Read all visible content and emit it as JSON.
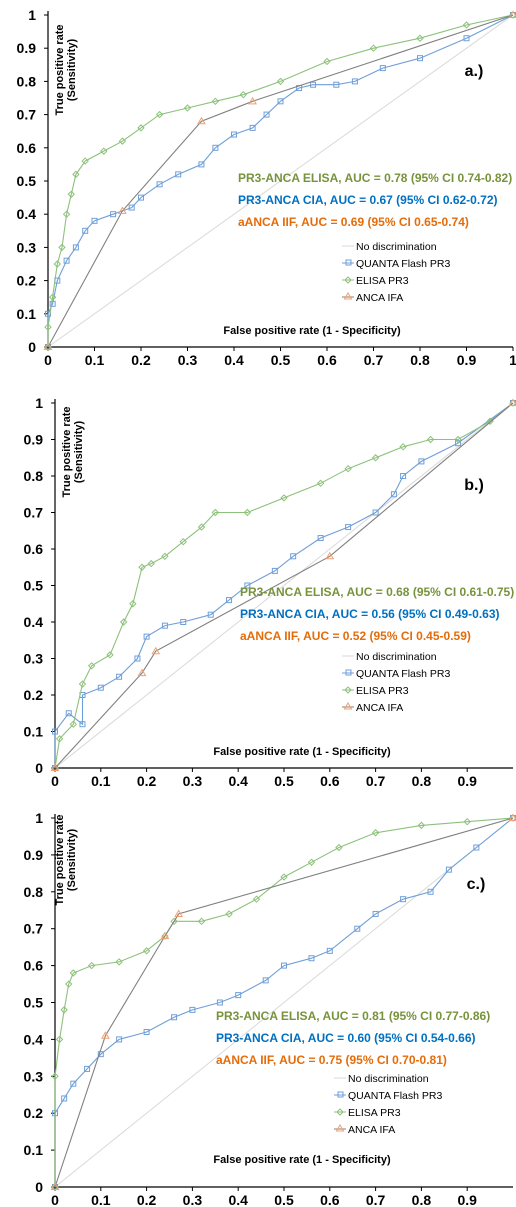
{
  "chart_data": [
    {
      "type": "line",
      "panel_label": "a.)",
      "ylabel_line1": "True positive rate",
      "ylabel_line2": "(Sensitivity)",
      "xlabel": "False positive rate (1 - Specificity)",
      "xlim": [
        0,
        1
      ],
      "ylim": [
        0,
        1
      ],
      "x_ticks": [
        "0",
        "0.1",
        "0.2",
        "0.3",
        "0.4",
        "0.5",
        "0.6",
        "0.7",
        "0.8",
        "0.9",
        "1"
      ],
      "y_ticks": [
        "0",
        "0.1",
        "0.2",
        "0.3",
        "0.4",
        "0.5",
        "0.6",
        "0.7",
        "0.8",
        "0.9",
        "1"
      ],
      "auc_labels": [
        {
          "text": "PR3-ANCA ELISA,  AUC = 0.78 (95% CI 0.74-0.82)",
          "color": "#77933c"
        },
        {
          "text": "PR3-ANCA CIA,  AUC = 0.67 (95% CI 0.62-0.72)",
          "color": "#0070c0"
        },
        {
          "text": "aANCA IIF,  AUC = 0.69 (95% CI 0.65-0.74)",
          "color": "#e46c0a"
        }
      ],
      "legend": [
        "No discrimination",
        "QUANTA Flash PR3",
        "ELISA PR3",
        "ANCA IFA"
      ],
      "series": [
        {
          "name": "No discrimination",
          "color": "#d9d9d9",
          "marker": "none",
          "points": [
            [
              0,
              0
            ],
            [
              1,
              1
            ]
          ]
        },
        {
          "name": "QUANTA Flash PR3",
          "color": "#6f9fd8",
          "marker": "square",
          "points": [
            [
              0,
              0
            ],
            [
              0,
              0.1
            ],
            [
              0.01,
              0.13
            ],
            [
              0.02,
              0.2
            ],
            [
              0.04,
              0.26
            ],
            [
              0.06,
              0.3
            ],
            [
              0.08,
              0.35
            ],
            [
              0.1,
              0.38
            ],
            [
              0.14,
              0.4
            ],
            [
              0.18,
              0.42
            ],
            [
              0.2,
              0.45
            ],
            [
              0.24,
              0.49
            ],
            [
              0.28,
              0.52
            ],
            [
              0.33,
              0.55
            ],
            [
              0.36,
              0.6
            ],
            [
              0.4,
              0.64
            ],
            [
              0.44,
              0.66
            ],
            [
              0.47,
              0.7
            ],
            [
              0.5,
              0.74
            ],
            [
              0.54,
              0.78
            ],
            [
              0.57,
              0.79
            ],
            [
              0.62,
              0.79
            ],
            [
              0.66,
              0.8
            ],
            [
              0.72,
              0.84
            ],
            [
              0.8,
              0.87
            ],
            [
              0.9,
              0.93
            ],
            [
              1,
              1
            ]
          ]
        },
        {
          "name": "ELISA PR3",
          "color": "#8cc17a",
          "marker": "diamond",
          "points": [
            [
              0,
              0
            ],
            [
              0,
              0.06
            ],
            [
              0.01,
              0.15
            ],
            [
              0.02,
              0.25
            ],
            [
              0.03,
              0.3
            ],
            [
              0.04,
              0.4
            ],
            [
              0.05,
              0.46
            ],
            [
              0.06,
              0.52
            ],
            [
              0.08,
              0.56
            ],
            [
              0.12,
              0.59
            ],
            [
              0.16,
              0.62
            ],
            [
              0.2,
              0.66
            ],
            [
              0.24,
              0.7
            ],
            [
              0.3,
              0.72
            ],
            [
              0.36,
              0.74
            ],
            [
              0.42,
              0.76
            ],
            [
              0.5,
              0.8
            ],
            [
              0.6,
              0.86
            ],
            [
              0.7,
              0.9
            ],
            [
              0.8,
              0.93
            ],
            [
              0.9,
              0.97
            ],
            [
              1,
              1
            ]
          ]
        },
        {
          "name": "ANCA IFA",
          "color": "#808080",
          "marker": "triangle",
          "points": [
            [
              0,
              0
            ],
            [
              0.16,
              0.41
            ],
            [
              0.33,
              0.68
            ],
            [
              0.44,
              0.74
            ],
            [
              1,
              1
            ]
          ]
        }
      ]
    },
    {
      "type": "line",
      "panel_label": "b.)",
      "ylabel_line1": "True positive rate",
      "ylabel_line2": "(Sensitivity)",
      "xlabel": "False positive rate (1 - Specificity)",
      "xlim": [
        0,
        1
      ],
      "ylim": [
        0,
        1
      ],
      "x_ticks": [
        "0",
        "0.1",
        "0.2",
        "0.3",
        "0.4",
        "0.5",
        "0.6",
        "0.7",
        "0.8",
        "0.9"
      ],
      "y_ticks": [
        "0",
        "0.1",
        "0.2",
        "0.3",
        "0.4",
        "0.5",
        "0.6",
        "0.7",
        "0.8",
        "0.9",
        "1"
      ],
      "auc_labels": [
        {
          "text": "PR3-ANCA ELISA,  AUC = 0.68 (95% CI 0.61-0.75)",
          "color": "#77933c"
        },
        {
          "text": "PR3-ANCA CIA,  AUC = 0.56 (95% CI 0.49-0.63)",
          "color": "#0070c0"
        },
        {
          "text": "aANCA IIF,  AUC = 0.52 (95% CI 0.45-0.59)",
          "color": "#e46c0a"
        }
      ],
      "legend": [
        "No discrimination",
        "QUANTA Flash PR3",
        "ELISA PR3",
        "ANCA IFA"
      ],
      "series": [
        {
          "name": "No discrimination",
          "color": "#d9d9d9",
          "marker": "none",
          "points": [
            [
              0,
              0
            ],
            [
              1,
              1
            ]
          ]
        },
        {
          "name": "QUANTA Flash PR3",
          "color": "#6f9fd8",
          "marker": "square",
          "points": [
            [
              0,
              0
            ],
            [
              0,
              0.1
            ],
            [
              0.03,
              0.15
            ],
            [
              0.06,
              0.12
            ],
            [
              0.06,
              0.2
            ],
            [
              0.1,
              0.22
            ],
            [
              0.14,
              0.25
            ],
            [
              0.18,
              0.3
            ],
            [
              0.2,
              0.36
            ],
            [
              0.24,
              0.39
            ],
            [
              0.28,
              0.4
            ],
            [
              0.34,
              0.42
            ],
            [
              0.38,
              0.46
            ],
            [
              0.42,
              0.5
            ],
            [
              0.48,
              0.54
            ],
            [
              0.52,
              0.58
            ],
            [
              0.58,
              0.63
            ],
            [
              0.64,
              0.66
            ],
            [
              0.7,
              0.7
            ],
            [
              0.74,
              0.75
            ],
            [
              0.76,
              0.8
            ],
            [
              0.8,
              0.84
            ],
            [
              0.88,
              0.89
            ],
            [
              1,
              1
            ]
          ]
        },
        {
          "name": "ELISA PR3",
          "color": "#8cc17a",
          "marker": "diamond",
          "points": [
            [
              0,
              0
            ],
            [
              0.01,
              0.08
            ],
            [
              0.04,
              0.12
            ],
            [
              0.06,
              0.23
            ],
            [
              0.08,
              0.28
            ],
            [
              0.12,
              0.31
            ],
            [
              0.15,
              0.4
            ],
            [
              0.17,
              0.45
            ],
            [
              0.19,
              0.55
            ],
            [
              0.21,
              0.56
            ],
            [
              0.24,
              0.58
            ],
            [
              0.28,
              0.62
            ],
            [
              0.32,
              0.66
            ],
            [
              0.35,
              0.7
            ],
            [
              0.42,
              0.7
            ],
            [
              0.5,
              0.74
            ],
            [
              0.58,
              0.78
            ],
            [
              0.64,
              0.82
            ],
            [
              0.7,
              0.85
            ],
            [
              0.76,
              0.88
            ],
            [
              0.82,
              0.9
            ],
            [
              0.88,
              0.9
            ],
            [
              0.95,
              0.95
            ],
            [
              1,
              1
            ]
          ]
        },
        {
          "name": "ANCA IFA",
          "color": "#808080",
          "marker": "triangle",
          "points": [
            [
              0,
              0
            ],
            [
              0.19,
              0.26
            ],
            [
              0.22,
              0.32
            ],
            [
              0.6,
              0.58
            ],
            [
              1,
              1
            ]
          ]
        }
      ]
    },
    {
      "type": "line",
      "panel_label": "c.)",
      "ylabel_line1": "True positive rate",
      "ylabel_line2": "(Sensitivity)",
      "xlabel": "False positive rate (1 - Specificity)",
      "xlim": [
        0,
        1
      ],
      "ylim": [
        0,
        1
      ],
      "x_ticks": [
        "0",
        "0.1",
        "0.2",
        "0.3",
        "0.4",
        "0.5",
        "0.6",
        "0.7",
        "0.8",
        "0.9"
      ],
      "y_ticks": [
        "0",
        "0.1",
        "0.2",
        "0.3",
        "0.4",
        "0.5",
        "0.6",
        "0.7",
        "0.8",
        "0.9",
        "1"
      ],
      "auc_labels": [
        {
          "text": "PR3-ANCA ELISA,  AUC = 0.81 (95% CI 0.77-0.86)",
          "color": "#77933c"
        },
        {
          "text": "PR3-ANCA CIA,  AUC = 0.60 (95% CI 0.54-0.66)",
          "color": "#0070c0"
        },
        {
          "text": "aANCA IIF,  AUC = 0.75 (95% CI 0.70-0.81)",
          "color": "#e46c0a"
        }
      ],
      "legend": [
        "No discrimination",
        "QUANTA Flash PR3",
        "ELISA PR3",
        "ANCA IFA"
      ],
      "series": [
        {
          "name": "No discrimination",
          "color": "#d9d9d9",
          "marker": "none",
          "points": [
            [
              0,
              0
            ],
            [
              1,
              1
            ]
          ]
        },
        {
          "name": "QUANTA Flash PR3",
          "color": "#6f9fd8",
          "marker": "square",
          "points": [
            [
              0,
              0
            ],
            [
              0,
              0.2
            ],
            [
              0.02,
              0.24
            ],
            [
              0.04,
              0.28
            ],
            [
              0.07,
              0.32
            ],
            [
              0.1,
              0.36
            ],
            [
              0.14,
              0.4
            ],
            [
              0.2,
              0.42
            ],
            [
              0.26,
              0.46
            ],
            [
              0.3,
              0.48
            ],
            [
              0.36,
              0.5
            ],
            [
              0.4,
              0.52
            ],
            [
              0.46,
              0.56
            ],
            [
              0.5,
              0.6
            ],
            [
              0.56,
              0.62
            ],
            [
              0.6,
              0.64
            ],
            [
              0.66,
              0.7
            ],
            [
              0.7,
              0.74
            ],
            [
              0.76,
              0.78
            ],
            [
              0.82,
              0.8
            ],
            [
              0.86,
              0.86
            ],
            [
              0.92,
              0.92
            ],
            [
              1,
              1
            ]
          ]
        },
        {
          "name": "ELISA PR3",
          "color": "#8cc17a",
          "marker": "diamond",
          "points": [
            [
              0,
              0
            ],
            [
              0,
              0.3
            ],
            [
              0.01,
              0.4
            ],
            [
              0.02,
              0.48
            ],
            [
              0.03,
              0.55
            ],
            [
              0.04,
              0.58
            ],
            [
              0.08,
              0.6
            ],
            [
              0.14,
              0.61
            ],
            [
              0.2,
              0.64
            ],
            [
              0.24,
              0.68
            ],
            [
              0.26,
              0.72
            ],
            [
              0.32,
              0.72
            ],
            [
              0.38,
              0.74
            ],
            [
              0.44,
              0.78
            ],
            [
              0.5,
              0.84
            ],
            [
              0.56,
              0.88
            ],
            [
              0.62,
              0.92
            ],
            [
              0.7,
              0.96
            ],
            [
              0.8,
              0.98
            ],
            [
              0.9,
              0.99
            ],
            [
              1,
              1
            ]
          ]
        },
        {
          "name": "ANCA IFA",
          "color": "#808080",
          "marker": "triangle",
          "points": [
            [
              0,
              0
            ],
            [
              0.11,
              0.41
            ],
            [
              0.24,
              0.68
            ],
            [
              0.27,
              0.74
            ],
            [
              1,
              1
            ]
          ]
        }
      ]
    }
  ]
}
